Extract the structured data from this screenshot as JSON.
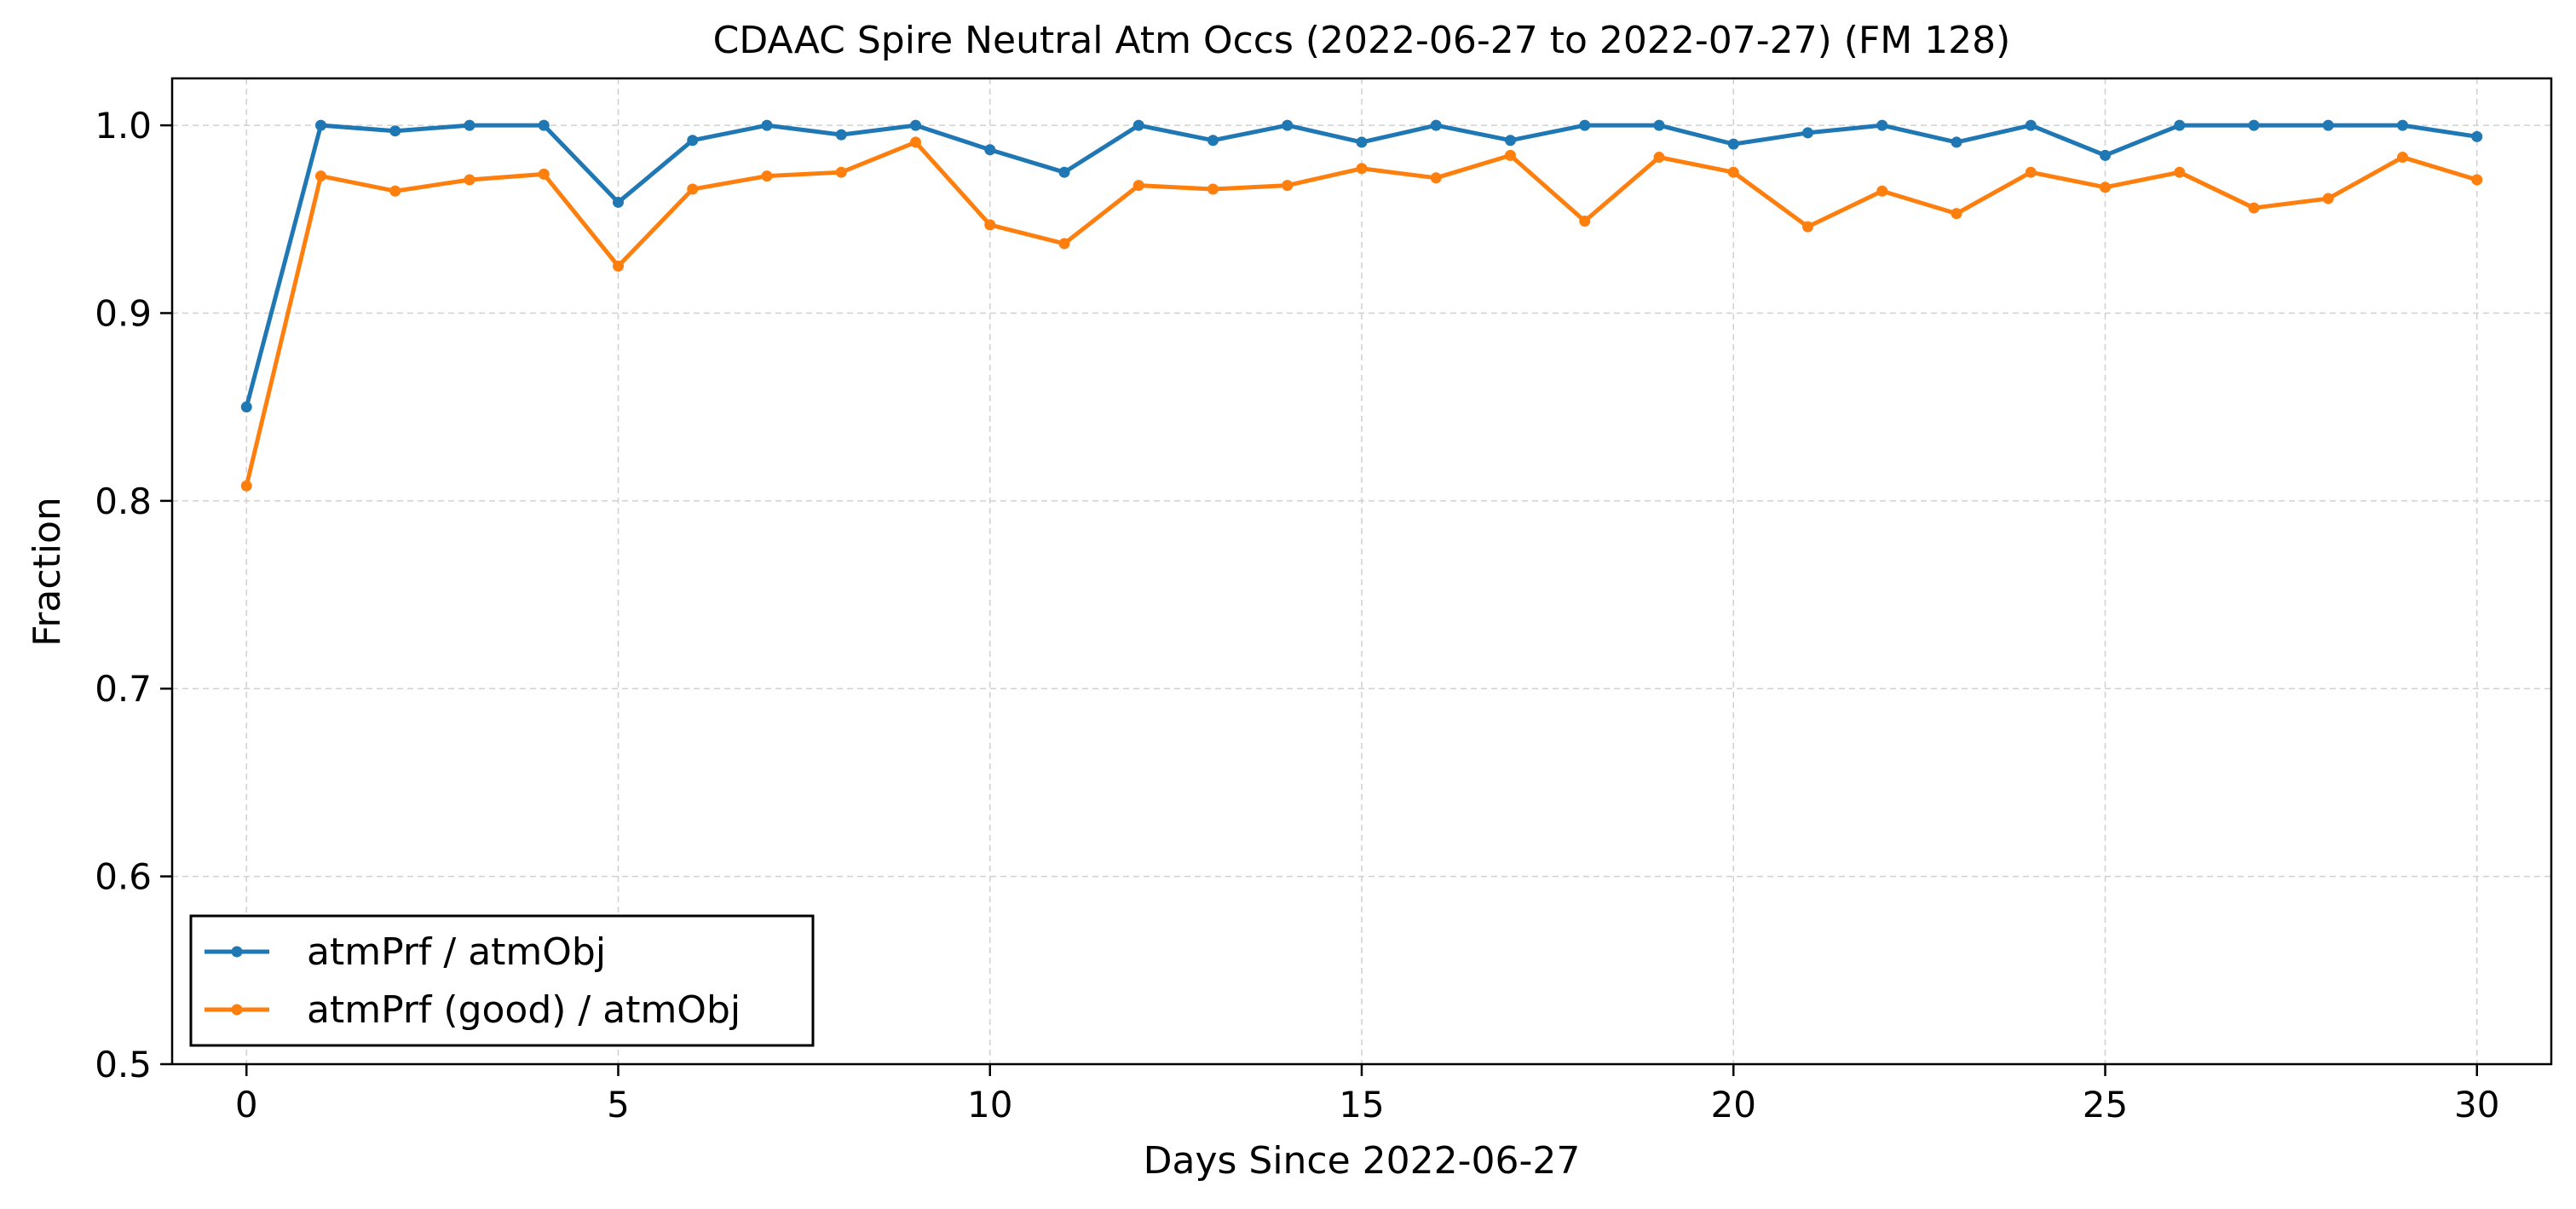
{
  "chart_data": {
    "type": "line",
    "title": "CDAAC Spire Neutral Atm Occs (2022-06-27 to 2022-07-27) (FM 128)",
    "xlabel": "Days Since 2022-06-27",
    "ylabel": "Fraction",
    "xlim": [
      -1,
      31
    ],
    "ylim": [
      0.5,
      1.025
    ],
    "xticks": [
      0,
      5,
      10,
      15,
      20,
      25,
      30
    ],
    "yticks": [
      0.5,
      0.6,
      0.7,
      0.8,
      0.9,
      1.0
    ],
    "grid": true,
    "legend_position": "lower-left",
    "x": [
      0,
      1,
      2,
      3,
      4,
      5,
      6,
      7,
      8,
      9,
      10,
      11,
      12,
      13,
      14,
      15,
      16,
      17,
      18,
      19,
      20,
      21,
      22,
      23,
      24,
      25,
      26,
      27,
      28,
      29,
      30
    ],
    "series": [
      {
        "name": "atmPrf / atmObj",
        "color": "#1f77b4",
        "values": [
          0.85,
          1.0,
          0.997,
          1.0,
          1.0,
          0.959,
          0.992,
          1.0,
          0.995,
          1.0,
          0.987,
          0.975,
          1.0,
          0.992,
          1.0,
          0.991,
          1.0,
          0.992,
          1.0,
          1.0,
          0.99,
          0.996,
          1.0,
          0.991,
          1.0,
          0.984,
          1.0,
          1.0,
          1.0,
          1.0,
          0.994
        ]
      },
      {
        "name": "atmPrf (good) / atmObj",
        "color": "#ff7f0e",
        "values": [
          0.808,
          0.973,
          0.965,
          0.971,
          0.974,
          0.925,
          0.966,
          0.973,
          0.975,
          0.991,
          0.947,
          0.937,
          0.968,
          0.966,
          0.968,
          0.977,
          0.972,
          0.984,
          0.949,
          0.983,
          0.975,
          0.946,
          0.965,
          0.953,
          0.975,
          0.967,
          0.975,
          0.956,
          0.961,
          0.983,
          0.971
        ]
      }
    ]
  }
}
